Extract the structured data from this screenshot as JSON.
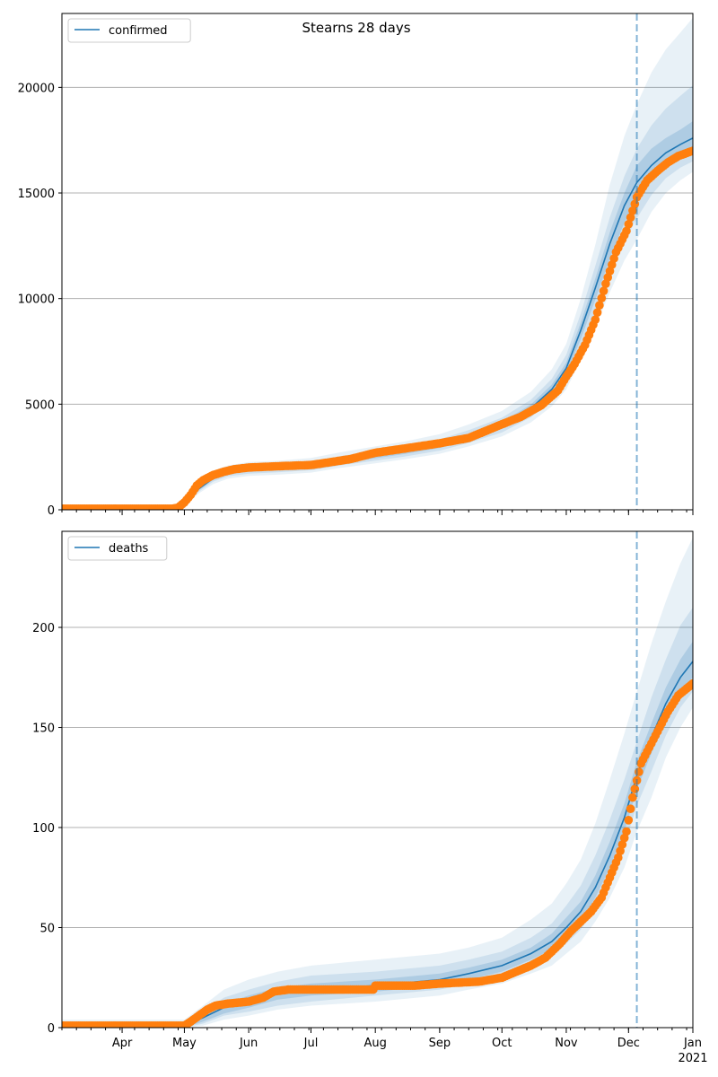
{
  "title": "Stearns 28 days",
  "colors": {
    "model_line": "#1f77b4",
    "band": "#1f77b4",
    "observed": "#ff7f0e",
    "grid": "#b0b0b0",
    "forecast_marker": "#1f77b4"
  },
  "x_axis": {
    "range": [
      "2020-03-03",
      "2021-01-01"
    ],
    "month_ticks": [
      {
        "label": "Apr",
        "date": "2020-04-01"
      },
      {
        "label": "May",
        "date": "2020-05-01"
      },
      {
        "label": "Jun",
        "date": "2020-06-01"
      },
      {
        "label": "Jul",
        "date": "2020-07-01"
      },
      {
        "label": "Aug",
        "date": "2020-08-01"
      },
      {
        "label": "Sep",
        "date": "2020-09-01"
      },
      {
        "label": "Oct",
        "date": "2020-10-01"
      },
      {
        "label": "Nov",
        "date": "2020-11-01"
      },
      {
        "label": "Dec",
        "date": "2020-12-01"
      },
      {
        "label": "Jan",
        "date": "2021-01-01"
      }
    ],
    "year_label": "2021",
    "minor_ticks": "weekly"
  },
  "forecast_start": "2020-12-05",
  "chart_data": [
    {
      "type": "line",
      "name": "confirmed",
      "legend": "top-left",
      "grid": "horizontal",
      "ylim": [
        0,
        23500
      ],
      "yticks": [
        0,
        5000,
        10000,
        15000,
        20000
      ],
      "model": {
        "x": [
          "2020-03-03",
          "2020-04-28",
          "2020-05-01",
          "2020-05-08",
          "2020-05-15",
          "2020-05-22",
          "2020-06-01",
          "2020-06-15",
          "2020-07-01",
          "2020-07-15",
          "2020-08-01",
          "2020-08-15",
          "2020-09-01",
          "2020-09-15",
          "2020-10-01",
          "2020-10-15",
          "2020-10-25",
          "2020-11-01",
          "2020-11-08",
          "2020-11-15",
          "2020-11-22",
          "2020-11-29",
          "2020-12-05",
          "2020-12-12",
          "2020-12-19",
          "2020-12-26",
          "2021-01-01"
        ],
        "y": [
          0,
          0,
          300,
          1000,
          1500,
          1750,
          1900,
          1950,
          2050,
          2300,
          2550,
          2750,
          3050,
          3450,
          4000,
          4800,
          5700,
          6700,
          8500,
          10500,
          12600,
          14400,
          15500,
          16300,
          16900,
          17300,
          17600
        ]
      },
      "bands": [
        {
          "level": "outer",
          "lower": [
            0,
            0,
            180,
            780,
            1220,
            1470,
            1600,
            1660,
            1760,
            1980,
            2200,
            2390,
            2650,
            3000,
            3470,
            4140,
            4900,
            5700,
            7100,
            8650,
            10300,
            11800,
            12800,
            14100,
            15000,
            15600,
            16000
          ],
          "upper": [
            200,
            200,
            450,
            1280,
            1860,
            2100,
            2260,
            2320,
            2450,
            2720,
            3000,
            3230,
            3580,
            4040,
            4680,
            5590,
            6650,
            7850,
            10000,
            12550,
            15400,
            17700,
            19200,
            20700,
            21800,
            22600,
            23300
          ]
        },
        {
          "level": "middle",
          "lower": [
            0,
            0,
            220,
            860,
            1340,
            1580,
            1710,
            1770,
            1870,
            2100,
            2330,
            2520,
            2800,
            3170,
            3660,
            4380,
            5200,
            6100,
            7650,
            9350,
            11150,
            12700,
            13800,
            14900,
            15700,
            16200,
            16500
          ],
          "upper": [
            120,
            120,
            390,
            1160,
            1700,
            1960,
            2110,
            2170,
            2290,
            2540,
            2800,
            3020,
            3340,
            3770,
            4360,
            5210,
            6200,
            7330,
            9300,
            11550,
            13850,
            15800,
            17100,
            18200,
            19000,
            19600,
            20100
          ]
        },
        {
          "level": "inner",
          "lower": [
            0,
            0,
            260,
            930,
            1420,
            1670,
            1810,
            1870,
            1960,
            2200,
            2440,
            2640,
            2930,
            3320,
            3840,
            4600,
            5460,
            6420,
            8080,
            9950,
            11900,
            13600,
            14700,
            15600,
            16300,
            16700,
            17000
          ],
          "upper": [
            60,
            60,
            340,
            1070,
            1590,
            1840,
            1990,
            2040,
            2150,
            2400,
            2660,
            2870,
            3180,
            3590,
            4160,
            4990,
            5930,
            6970,
            8870,
            10950,
            13150,
            15000,
            16300,
            17100,
            17600,
            18000,
            18400
          ]
        }
      ],
      "observed": {
        "x": [
          "2020-03-03",
          "2020-04-25",
          "2020-04-28",
          "2020-05-01",
          "2020-05-04",
          "2020-05-07",
          "2020-05-10",
          "2020-05-15",
          "2020-05-20",
          "2020-05-25",
          "2020-06-01",
          "2020-06-10",
          "2020-06-20",
          "2020-07-01",
          "2020-07-10",
          "2020-07-20",
          "2020-08-01",
          "2020-08-15",
          "2020-09-01",
          "2020-09-15",
          "2020-10-01",
          "2020-10-10",
          "2020-10-20",
          "2020-10-28",
          "2020-11-01",
          "2020-11-05",
          "2020-11-10",
          "2020-11-15",
          "2020-11-20",
          "2020-11-25",
          "2020-11-30",
          "2020-12-05",
          "2020-12-10",
          "2020-12-15",
          "2020-12-20",
          "2020-12-25",
          "2021-01-01"
        ],
        "y": [
          50,
          50,
          100,
          350,
          700,
          1150,
          1400,
          1650,
          1800,
          1920,
          2000,
          2040,
          2080,
          2120,
          2250,
          2400,
          2700,
          2900,
          3150,
          3400,
          4050,
          4400,
          4950,
          5650,
          6300,
          6900,
          7800,
          9000,
          10700,
          12200,
          13200,
          14800,
          15600,
          16050,
          16450,
          16750,
          17000
        ]
      }
    },
    {
      "type": "line",
      "name": "deaths",
      "legend": "top-left",
      "grid": "horizontal",
      "ylim": [
        0,
        248
      ],
      "yticks": [
        0,
        50,
        100,
        150,
        200
      ],
      "model": {
        "x": [
          "2020-03-03",
          "2020-05-01",
          "2020-05-10",
          "2020-05-20",
          "2020-06-01",
          "2020-06-15",
          "2020-07-01",
          "2020-08-01",
          "2020-09-01",
          "2020-09-15",
          "2020-10-01",
          "2020-10-15",
          "2020-10-25",
          "2020-11-01",
          "2020-11-08",
          "2020-11-15",
          "2020-11-22",
          "2020-11-29",
          "2020-12-05",
          "2020-12-12",
          "2020-12-19",
          "2020-12-26",
          "2021-01-01"
        ],
        "y": [
          0,
          1,
          5,
          10,
          13,
          17,
          19,
          21,
          24,
          27,
          31,
          37,
          43,
          50,
          58,
          70,
          86,
          105,
          126,
          145,
          162,
          175,
          183
        ]
      },
      "bands": [
        {
          "level": "outer",
          "lower": [
            0,
            0,
            1,
            4,
            6,
            9,
            11,
            13,
            16,
            19,
            22,
            27,
            31,
            37,
            43,
            53,
            65,
            80,
            98,
            115,
            135,
            150,
            160
          ],
          "upper": [
            4,
            4,
            11,
            19,
            24,
            28,
            31,
            34,
            37,
            40,
            45,
            54,
            62,
            72,
            84,
            102,
            124,
            147,
            168,
            192,
            213,
            232,
            245
          ]
        },
        {
          "level": "middle",
          "lower": [
            0,
            0,
            2,
            6,
            8,
            11,
            13,
            16,
            19,
            22,
            25,
            31,
            36,
            42,
            49,
            60,
            74,
            91,
            111,
            128,
            146,
            160,
            168
          ],
          "upper": [
            2,
            2,
            8,
            15,
            19,
            23,
            26,
            28,
            31,
            34,
            38,
            45,
            52,
            61,
            71,
            86,
            104,
            124,
            143,
            165,
            184,
            201,
            210
          ]
        },
        {
          "level": "inner",
          "lower": [
            0,
            0,
            3,
            7,
            10,
            14,
            16,
            18,
            21,
            24,
            28,
            34,
            39,
            46,
            53,
            65,
            80,
            98,
            119,
            137,
            155,
            168,
            175
          ],
          "upper": [
            1,
            1,
            6,
            12,
            16,
            20,
            22,
            24,
            27,
            30,
            34,
            40,
            47,
            55,
            63,
            76,
            93,
            112,
            133,
            152,
            170,
            184,
            193
          ]
        }
      ],
      "observed": {
        "x": [
          "2020-03-03",
          "2020-05-01",
          "2020-05-04",
          "2020-05-08",
          "2020-05-12",
          "2020-05-16",
          "2020-05-22",
          "2020-06-01",
          "2020-06-08",
          "2020-06-13",
          "2020-06-20",
          "2020-07-10",
          "2020-07-31",
          "2020-08-01",
          "2020-08-20",
          "2020-09-01",
          "2020-09-20",
          "2020-10-01",
          "2020-10-08",
          "2020-10-15",
          "2020-10-22",
          "2020-10-29",
          "2020-11-03",
          "2020-11-08",
          "2020-11-13",
          "2020-11-18",
          "2020-11-22",
          "2020-11-26",
          "2020-11-30",
          "2020-12-03",
          "2020-12-07",
          "2020-12-11",
          "2020-12-15",
          "2020-12-20",
          "2020-12-25",
          "2021-01-01"
        ],
        "y": [
          1,
          1,
          3,
          6,
          9,
          11,
          12,
          13,
          15,
          18,
          19,
          19,
          19,
          21,
          21,
          22,
          23,
          25,
          28,
          31,
          35,
          42,
          48,
          53,
          58,
          65,
          75,
          85,
          98,
          115,
          132,
          140,
          148,
          158,
          166,
          172
        ]
      }
    }
  ]
}
